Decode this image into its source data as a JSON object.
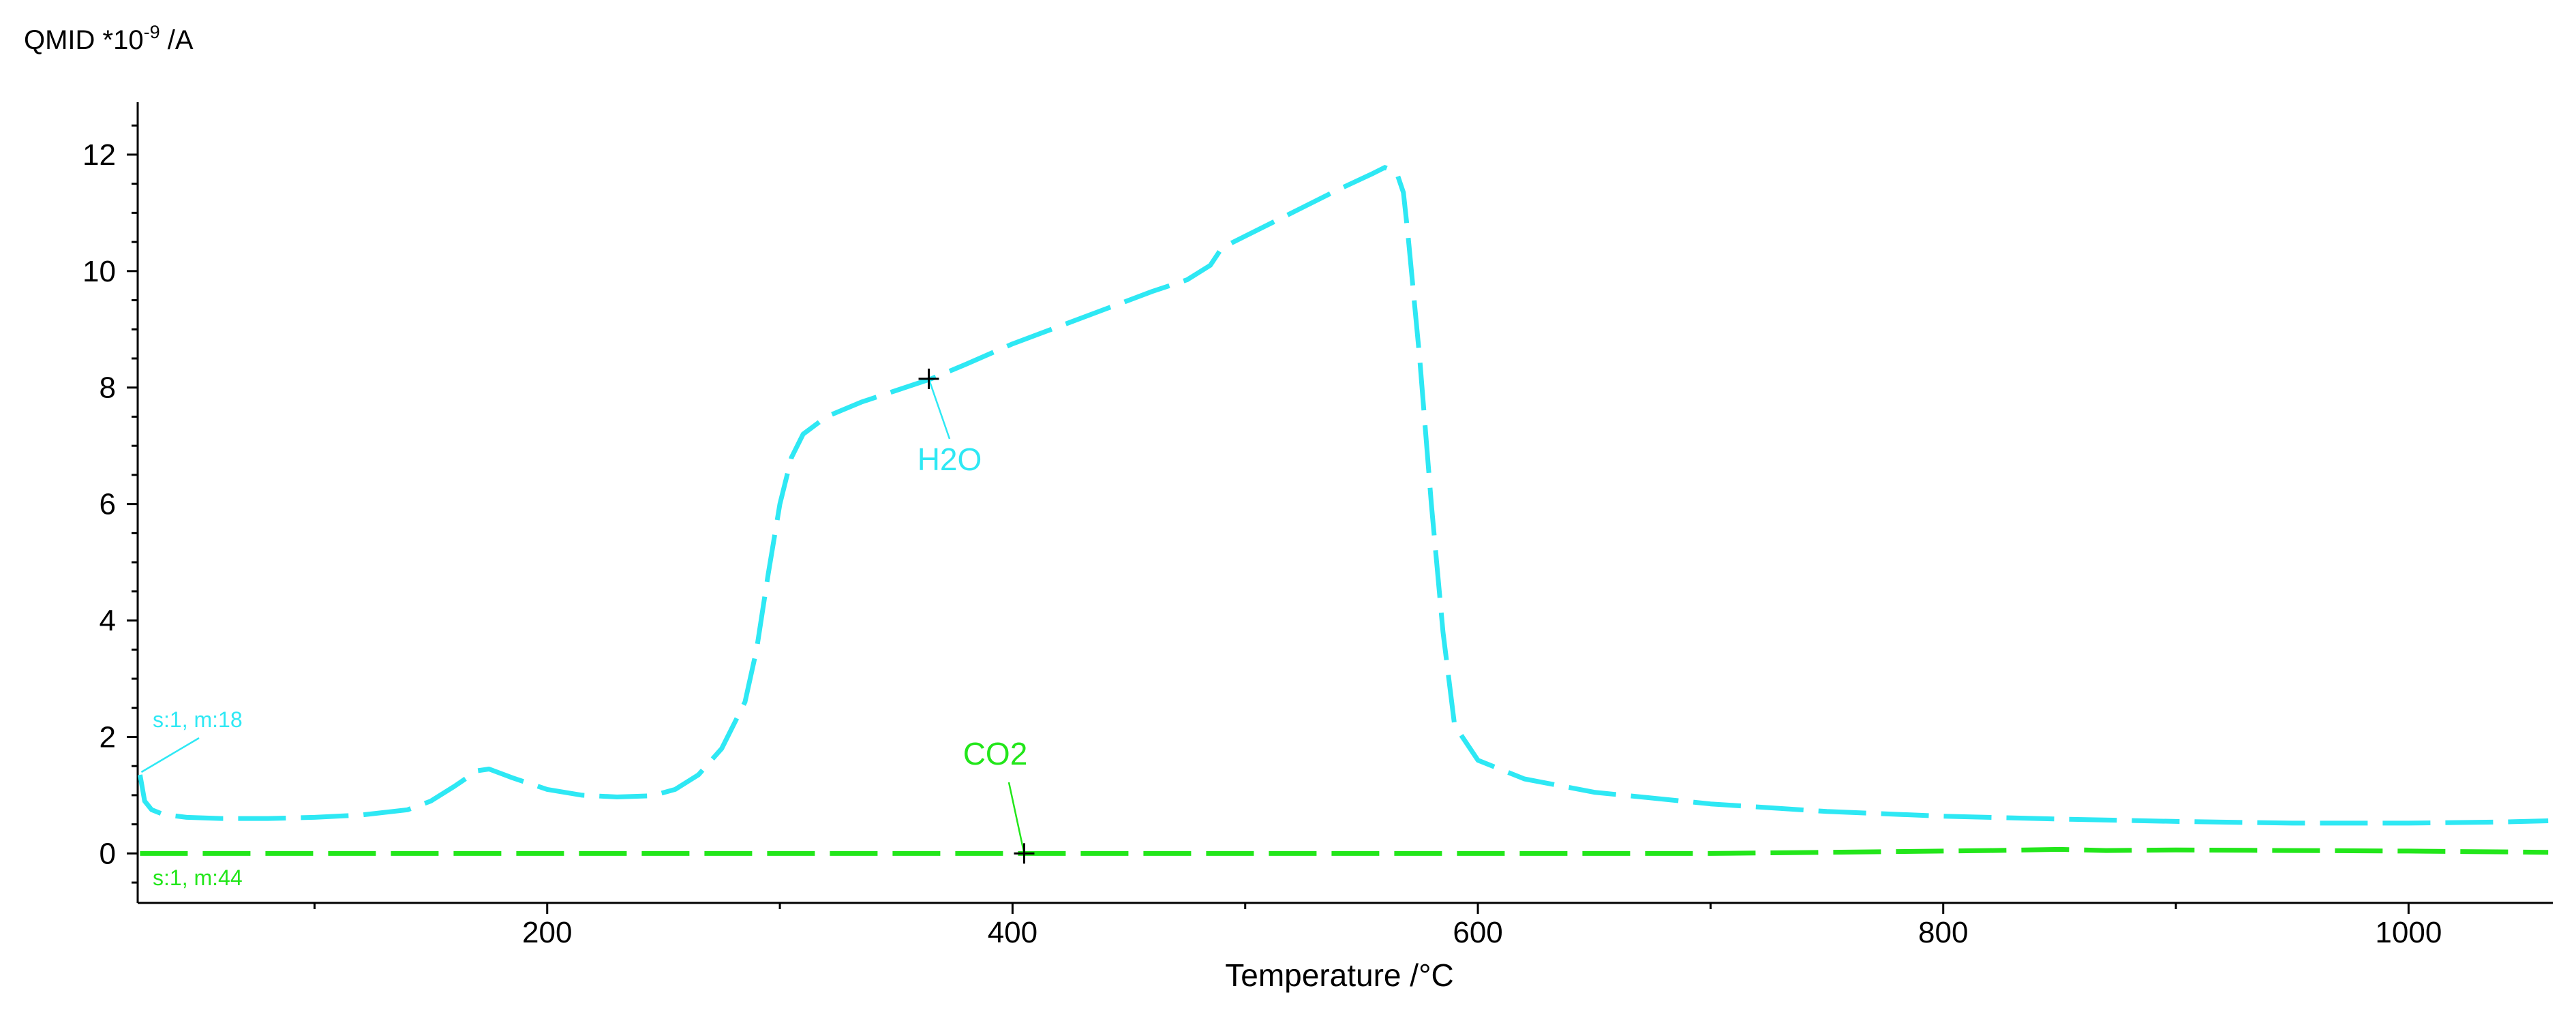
{
  "chart_data": {
    "type": "line",
    "title": "",
    "ylabel_main": "QMID *10",
    "ylabel_exp": "-9",
    "ylabel_unit": " /A",
    "xlabel": "Temperature /°C",
    "xlim": [
      24,
      1062
    ],
    "ylim": [
      -0.85,
      12.9
    ],
    "xticks": [
      200,
      400,
      600,
      800,
      1000
    ],
    "yticks": [
      0,
      2,
      4,
      6,
      8,
      10,
      12
    ],
    "yminor_step": 0.5,
    "xminor_step": 100,
    "grid": false,
    "series": [
      {
        "name": "H2O",
        "label": "s:1, m:18",
        "color": "#2ee8f4",
        "x": [
          25,
          27,
          30,
          35,
          45,
          60,
          80,
          100,
          120,
          140,
          150,
          160,
          170,
          175,
          185,
          200,
          215,
          230,
          245,
          255,
          265,
          275,
          285,
          290,
          295,
          300,
          305,
          310,
          320,
          335,
          350,
          365,
          380,
          400,
          420,
          440,
          460,
          475,
          485,
          490,
          500,
          520,
          540,
          555,
          560,
          565,
          568,
          570,
          575,
          580,
          585,
          590,
          600,
          620,
          650,
          700,
          750,
          800,
          850,
          900,
          950,
          1000,
          1040,
          1060
        ],
        "y": [
          1.35,
          0.9,
          0.75,
          0.67,
          0.62,
          0.6,
          0.6,
          0.62,
          0.66,
          0.75,
          0.9,
          1.15,
          1.42,
          1.45,
          1.3,
          1.1,
          1.0,
          0.97,
          0.99,
          1.1,
          1.35,
          1.8,
          2.6,
          3.5,
          4.8,
          6.0,
          6.8,
          7.2,
          7.5,
          7.75,
          7.95,
          8.15,
          8.4,
          8.75,
          9.05,
          9.35,
          9.65,
          9.85,
          10.1,
          10.4,
          10.6,
          11.0,
          11.4,
          11.68,
          11.78,
          11.7,
          11.35,
          10.6,
          8.5,
          6.0,
          3.8,
          2.2,
          1.6,
          1.28,
          1.05,
          0.85,
          0.72,
          0.64,
          0.59,
          0.55,
          0.52,
          0.52,
          0.54,
          0.56
        ]
      },
      {
        "name": "CO2",
        "label": "s:1, m:44",
        "color": "#22e61a",
        "x": [
          25,
          100,
          200,
          300,
          400,
          500,
          600,
          700,
          750,
          800,
          820,
          850,
          870,
          900,
          950,
          1000,
          1060
        ],
        "y": [
          0.0,
          0.0,
          0.0,
          0.0,
          0.0,
          0.0,
          0.0,
          0.0,
          0.02,
          0.04,
          0.05,
          0.07,
          0.05,
          0.06,
          0.05,
          0.04,
          0.02
        ]
      }
    ],
    "annotations": [
      {
        "text": "H2O",
        "series": 0,
        "x": 364,
        "y": 8.15
      },
      {
        "text": "CO2",
        "series": 1,
        "x": 405,
        "y": 0.0
      }
    ]
  }
}
